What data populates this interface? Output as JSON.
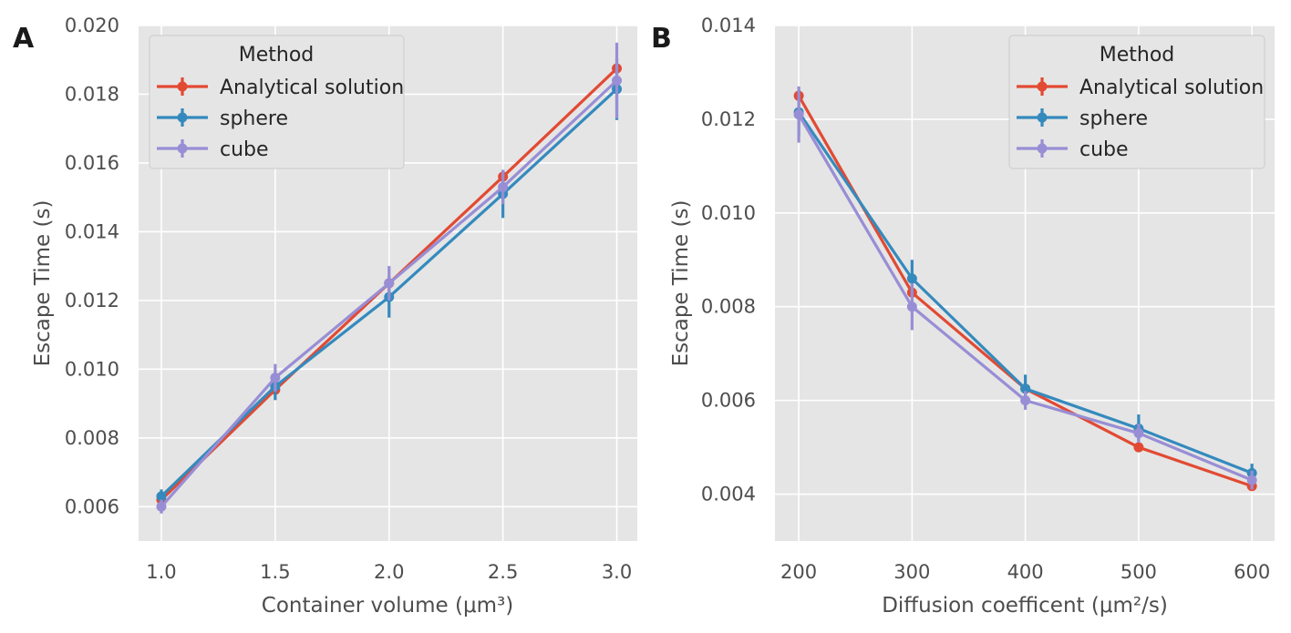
{
  "chart_data": [
    {
      "panel": "A",
      "type": "line",
      "xlabel": "Container volume (μm³)",
      "ylabel": "Escape Time (s)",
      "xlim": [
        0.9,
        3.09
      ],
      "ylim": [
        0.005,
        0.02
      ],
      "x_ticks": [
        "1.0",
        "1.5",
        "2.0",
        "2.5",
        "3.0"
      ],
      "y_ticks": [
        "0.006",
        "0.008",
        "0.010",
        "0.012",
        "0.014",
        "0.016",
        "0.018",
        "0.020"
      ],
      "grid": true,
      "legend": {
        "title": "Method",
        "placement": "top-left"
      },
      "x": [
        1.0,
        1.5,
        2.0,
        2.5,
        3.0
      ],
      "series": [
        {
          "name": "Analytical solution",
          "color": "#E24A33",
          "values": [
            0.0062,
            0.0094,
            0.0125,
            0.0156,
            0.01875
          ],
          "err": [
            0,
            0,
            0,
            0.0001,
            0
          ]
        },
        {
          "name": "sphere",
          "color": "#348ABD",
          "values": [
            0.0063,
            0.0095,
            0.0121,
            0.0151,
            0.01815
          ],
          "err": [
            0.0002,
            0.0004,
            0.0006,
            0.0007,
            0.0009
          ]
        },
        {
          "name": "cube",
          "color": "#988ED5",
          "values": [
            0.006,
            0.00975,
            0.0125,
            0.0153,
            0.0184
          ],
          "err": [
            0.0002,
            0.0004,
            0.0005,
            0.0005,
            0.0011
          ]
        }
      ]
    },
    {
      "panel": "B",
      "type": "line",
      "xlabel": "Diffusion coefficent (μm²/s)",
      "ylabel": "Escape Time (s)",
      "xlim": [
        179,
        620
      ],
      "ylim": [
        0.003,
        0.014
      ],
      "x_ticks": [
        "200",
        "300",
        "400",
        "500",
        "600"
      ],
      "y_ticks": [
        "0.004",
        "0.006",
        "0.008",
        "0.010",
        "0.012",
        "0.014"
      ],
      "grid": true,
      "legend": {
        "title": "Method",
        "placement": "top-right"
      },
      "x": [
        200,
        300,
        400,
        500,
        600
      ],
      "series": [
        {
          "name": "Analytical solution",
          "color": "#E24A33",
          "values": [
            0.0125,
            0.0083,
            0.00625,
            0.005,
            0.00417
          ],
          "err": [
            0,
            0,
            0,
            0,
            0
          ]
        },
        {
          "name": "sphere",
          "color": "#348ABD",
          "values": [
            0.01215,
            0.0086,
            0.00625,
            0.0054,
            0.00445
          ],
          "err": [
            0.0005,
            0.0004,
            0.0003,
            0.0003,
            0.0002
          ]
        },
        {
          "name": "cube",
          "color": "#988ED5",
          "values": [
            0.0121,
            0.008,
            0.006,
            0.0053,
            0.0043
          ],
          "err": [
            0.0006,
            0.0005,
            0.0002,
            0.0002,
            0.0002
          ]
        }
      ]
    }
  ]
}
